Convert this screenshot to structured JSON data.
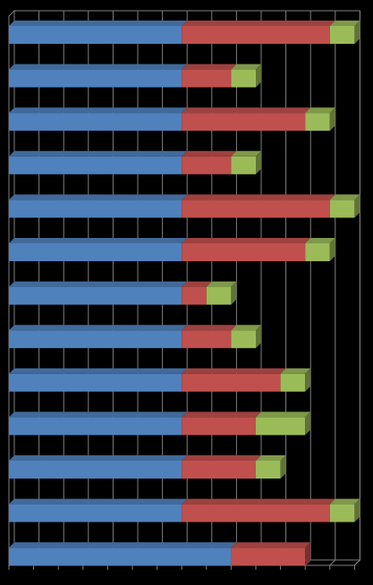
{
  "chart_data": {
    "type": "bar",
    "orientation": "horizontal",
    "stacked": true,
    "three_d": true,
    "grid": true,
    "legend": "none",
    "xlim": [
      0,
      14
    ],
    "series": [
      {
        "color": "#4F81BD",
        "values": [
          7,
          7,
          7,
          7,
          7,
          7,
          7,
          7,
          7,
          7,
          7,
          7,
          9
        ]
      },
      {
        "color": "#C0504D",
        "values": [
          6,
          2,
          5,
          2,
          6,
          5,
          1,
          2,
          4,
          3,
          3,
          6,
          3
        ]
      },
      {
        "color": "#9BBB59",
        "values": [
          1,
          1,
          1,
          1,
          1,
          1,
          1,
          1,
          1,
          2,
          1,
          1,
          0
        ]
      }
    ],
    "categories": [
      "",
      "",
      "",
      "",
      "",
      "",
      "",
      "",
      "",
      "",
      "",
      "",
      ""
    ]
  }
}
